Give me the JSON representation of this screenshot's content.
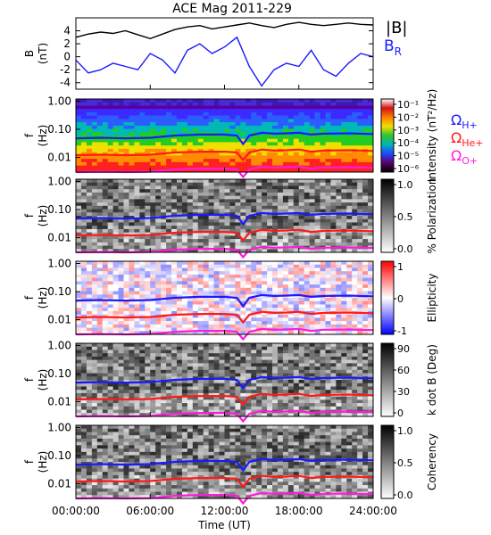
{
  "title": "ACE Mag 2011-229",
  "chart_data": [
    {
      "type": "line",
      "ylabel_top": "B",
      "ylabel_unit": "(nT)",
      "ylim": [
        -5,
        6
      ],
      "yticks": [
        "4",
        "2",
        "0",
        "-2",
        "-4"
      ],
      "yticks_values": [
        4,
        2,
        0,
        -2,
        -4
      ],
      "series": [
        {
          "name": "|B|",
          "color": "#000000",
          "x": [
            0,
            1,
            2,
            3,
            4,
            5,
            6,
            7,
            8,
            9,
            10,
            11,
            12,
            13,
            14,
            15,
            16,
            17,
            18,
            19,
            20,
            21,
            22,
            23,
            24
          ],
          "values": [
            3.0,
            3.5,
            3.8,
            3.6,
            4.0,
            3.4,
            2.8,
            3.5,
            4.2,
            4.6,
            4.8,
            4.3,
            4.6,
            4.9,
            5.2,
            4.8,
            4.5,
            5.0,
            5.3,
            5.0,
            4.8,
            5.0,
            5.2,
            5.0,
            4.9
          ]
        },
        {
          "name": "B",
          "name_sub": "R",
          "color": "#1a1aff",
          "x": [
            0,
            1,
            2,
            3,
            4,
            5,
            6,
            7,
            8,
            9,
            10,
            11,
            12,
            13,
            14,
            15,
            16,
            17,
            18,
            19,
            20,
            21,
            22,
            23,
            24
          ],
          "values": [
            -0.5,
            -2.5,
            -2.0,
            -1.0,
            -1.5,
            -2.0,
            0.5,
            -0.5,
            -2.5,
            1.0,
            2.0,
            0.5,
            1.5,
            3.0,
            -1.5,
            -4.5,
            -2.0,
            -1.0,
            -1.5,
            1.0,
            -2.0,
            -3.0,
            -1.0,
            0.5,
            0.0
          ]
        }
      ]
    },
    {
      "type": "heatmap",
      "ylabel_top": "f",
      "ylabel_unit": "(Hz)",
      "yticks": [
        "1.00",
        "0.10",
        "0.01"
      ],
      "colorbar_label": "Intensity (nT²/Hz)",
      "colorbar_ticks": [
        "10⁻¹",
        "10⁻²",
        "10⁻³",
        "10⁻⁴",
        "10⁻⁵",
        "10⁻⁶"
      ],
      "colorbar_colors": [
        "#ffffff",
        "#d21414",
        "#ff7f00",
        "#f0e000",
        "#2cc62c",
        "#00b4b4",
        "#1e46ff",
        "#5a0064",
        "#000000"
      ]
    },
    {
      "type": "heatmap",
      "ylabel_top": "f",
      "ylabel_unit": "(Hz)",
      "yticks": [
        "1.00",
        "0.10",
        "0.01"
      ],
      "colorbar_label": "% Polarization",
      "colorbar_ticks": [
        "1.0",
        "0.5",
        "0.0"
      ],
      "colorbar_colors": [
        "#000000",
        "#ffffff"
      ]
    },
    {
      "type": "heatmap",
      "ylabel_top": "f",
      "ylabel_unit": "(Hz)",
      "yticks": [
        "1.00",
        "0.10",
        "0.01"
      ],
      "colorbar_label": "Ellipticity",
      "colorbar_ticks": [
        "1",
        "0",
        "-1"
      ],
      "colorbar_colors": [
        "#ff0000",
        "#ffffff",
        "#0000ff"
      ]
    },
    {
      "type": "heatmap",
      "ylabel_top": "f",
      "ylabel_unit": "(Hz)",
      "yticks": [
        "1.00",
        "0.10",
        "0.01"
      ],
      "colorbar_label": "k dot B (Deg)",
      "colorbar_ticks": [
        "90",
        "60",
        "30",
        "0"
      ],
      "colorbar_colors": [
        "#000000",
        "#ffffff"
      ]
    },
    {
      "type": "heatmap",
      "ylabel_top": "f",
      "ylabel_unit": "(Hz)",
      "yticks": [
        "1.00",
        "0.10",
        "0.01"
      ],
      "colorbar_label": "Coherency",
      "colorbar_ticks": [
        "1.0",
        "0.5",
        "0.0"
      ],
      "colorbar_colors": [
        "#000000",
        "#ffffff"
      ]
    }
  ],
  "gyro_lines": [
    {
      "name": "Ω",
      "name_sub": "H+",
      "color": "#1a1aff",
      "x": [
        0,
        2,
        4,
        6,
        8,
        10,
        12,
        13,
        13.5,
        14,
        15,
        16,
        17,
        18,
        19,
        20,
        22,
        24
      ],
      "values": [
        0.048,
        0.05,
        0.048,
        0.05,
        0.06,
        0.065,
        0.065,
        0.06,
        0.03,
        0.06,
        0.075,
        0.07,
        0.072,
        0.075,
        0.065,
        0.07,
        0.072,
        0.068
      ]
    },
    {
      "name": "Ω",
      "name_sub": "He+",
      "color": "#ff1a1a",
      "x": [
        0,
        2,
        4,
        6,
        8,
        10,
        12,
        13,
        13.5,
        14,
        15,
        16,
        17,
        18,
        19,
        20,
        22,
        24
      ],
      "values": [
        0.012,
        0.0125,
        0.012,
        0.0125,
        0.015,
        0.016,
        0.016,
        0.015,
        0.008,
        0.015,
        0.019,
        0.0175,
        0.018,
        0.019,
        0.016,
        0.0175,
        0.018,
        0.017
      ]
    },
    {
      "name": "Ω",
      "name_sub": "O+",
      "color": "#ff1adc",
      "x": [
        0,
        2,
        4,
        6,
        8,
        10,
        12,
        13,
        13.5,
        14,
        15,
        16,
        17,
        18,
        19,
        20,
        22,
        24
      ],
      "values": [
        0.003,
        0.0031,
        0.003,
        0.0031,
        0.0037,
        0.004,
        0.004,
        0.0037,
        0.002,
        0.0037,
        0.0047,
        0.0044,
        0.0045,
        0.0047,
        0.004,
        0.0044,
        0.0045,
        0.0043
      ]
    }
  ],
  "xaxis": {
    "ticks": [
      "00:00:00",
      "06:00:00",
      "12:00:00",
      "18:00:00",
      "24:00:00"
    ],
    "tick_hours": [
      0,
      6,
      12,
      18,
      24
    ],
    "label": "Time (UT)",
    "range_hours": [
      0,
      24
    ]
  },
  "legend_top": {
    "b_abs": "|B|",
    "b_r": "B",
    "b_r_sub": "R"
  }
}
